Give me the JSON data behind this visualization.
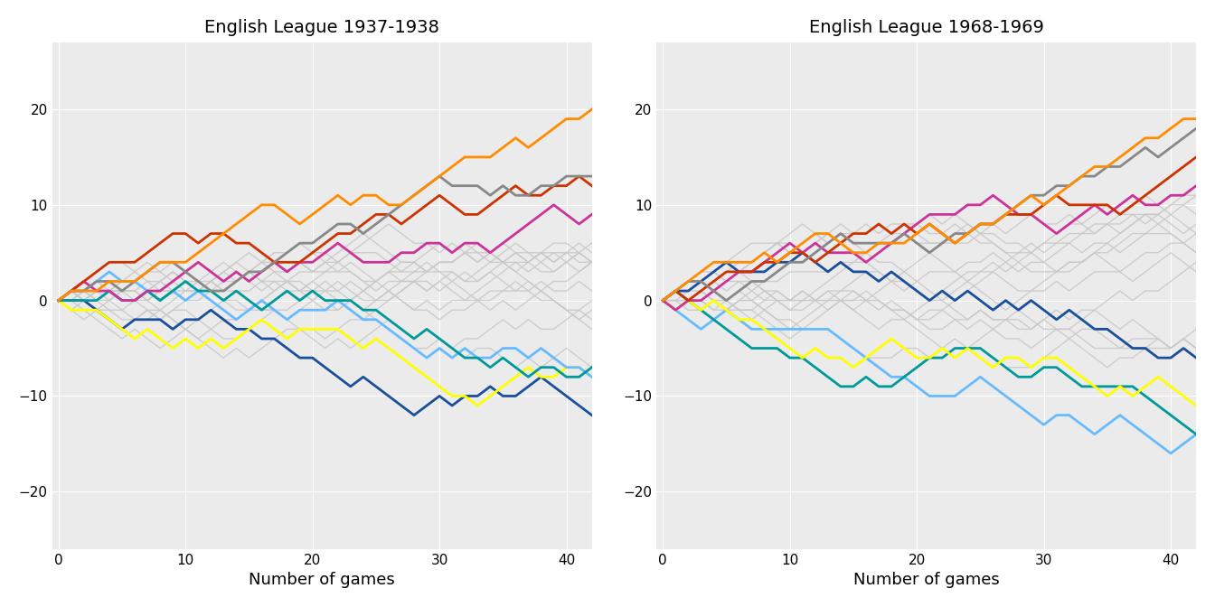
{
  "title1": "English League 1937-1938",
  "title2": "English League 1968-1969",
  "xlabel": "Number of games",
  "n_games": 42,
  "n_teams": 22,
  "bg_color": "#EBEBEB",
  "grid_color": "#FFFFFF",
  "gray_color": "#C8C8C8",
  "gray_alpha": 0.85,
  "colors1_top": [
    "#CC3399",
    "#CC3300",
    "#888888",
    "#FF8C00"
  ],
  "colors1_bot": [
    "#1A4F9C",
    "#FFFF00",
    "#66BBFF",
    "#009999"
  ],
  "colors2_top": [
    "#CC3399",
    "#CC3300",
    "#888888",
    "#FF8C00"
  ],
  "colors2_bot": [
    "#66BBFF",
    "#009999",
    "#FFFF00",
    "#1A4F9C"
  ],
  "ylim": [
    -26,
    27
  ],
  "xlim": [
    -0.5,
    42
  ],
  "yticks": [
    -20,
    -10,
    0,
    10,
    20
  ],
  "xticks": [
    0,
    10,
    20,
    30,
    40
  ],
  "lw_color": 2.0,
  "lw_gray": 1.0,
  "title_fontsize": 14,
  "label_fontsize": 13,
  "tick_fontsize": 11
}
